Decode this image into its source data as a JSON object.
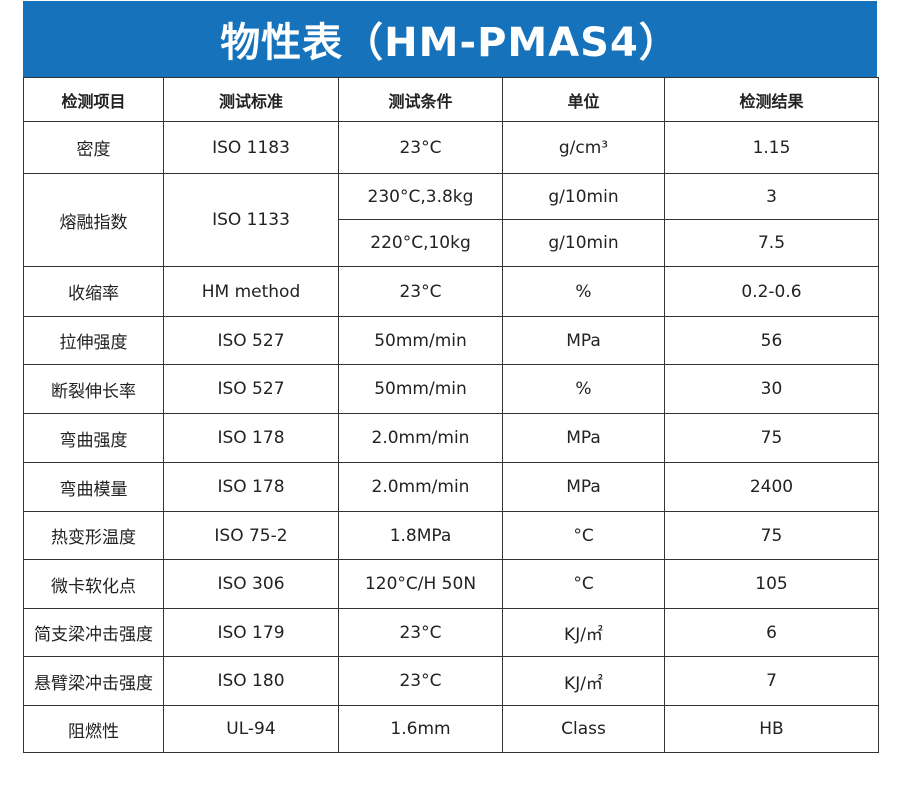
{
  "title": "物性表（HM-PMAS4）",
  "colors": {
    "header_bg": "#1572bb",
    "border": "#333333"
  },
  "headers": [
    "检测项目",
    "测试标准",
    "测试条件",
    "单位",
    "检测结果"
  ],
  "rows": [
    {
      "item": "密度",
      "standard": "ISO 1183",
      "conditions": [
        {
          "condition": "23°C",
          "unit": "g/cm³",
          "result": "1.15"
        }
      ]
    },
    {
      "item": "熔融指数",
      "standard": "ISO 1133",
      "conditions": [
        {
          "condition": "230°C,3.8kg",
          "unit": "g/10min",
          "result": "3"
        },
        {
          "condition": "220°C,10kg",
          "unit": "g/10min",
          "result": "7.5"
        }
      ]
    },
    {
      "item": "收缩率",
      "standard": "HM method",
      "conditions": [
        {
          "condition": "23°C",
          "unit": "%",
          "result": "0.2-0.6"
        }
      ]
    },
    {
      "item": "拉伸强度",
      "standard": "ISO 527",
      "conditions": [
        {
          "condition": "50mm/min",
          "unit": "MPa",
          "result": "56"
        }
      ]
    },
    {
      "item": "断裂伸长率",
      "standard": "ISO 527",
      "conditions": [
        {
          "condition": "50mm/min",
          "unit": "%",
          "result": "30"
        }
      ]
    },
    {
      "item": "弯曲强度",
      "standard": "ISO 178",
      "conditions": [
        {
          "condition": "2.0mm/min",
          "unit": "MPa",
          "result": "75"
        }
      ]
    },
    {
      "item": "弯曲模量",
      "standard": "ISO 178",
      "conditions": [
        {
          "condition": "2.0mm/min",
          "unit": "MPa",
          "result": "2400"
        }
      ]
    },
    {
      "item": "热变形温度",
      "standard": "ISO 75-2",
      "conditions": [
        {
          "condition": "1.8MPa",
          "unit": "°C",
          "result": "75"
        }
      ]
    },
    {
      "item": "微卡软化点",
      "standard": "ISO 306",
      "conditions": [
        {
          "condition": "120°C/H 50N",
          "unit": "°C",
          "result": "105"
        }
      ]
    },
    {
      "item": "简支梁冲击强度",
      "standard": "ISO 179",
      "conditions": [
        {
          "condition": "23°C",
          "unit": "KJ/㎡",
          "result": "6"
        }
      ]
    },
    {
      "item": "悬臂梁冲击强度",
      "standard": "ISO 180",
      "conditions": [
        {
          "condition": "23°C",
          "unit": "KJ/㎡",
          "result": "7"
        }
      ]
    },
    {
      "item": "阻燃性",
      "standard": "UL-94",
      "conditions": [
        {
          "condition": "1.6mm",
          "unit": "Class",
          "result": "HB"
        }
      ]
    }
  ]
}
